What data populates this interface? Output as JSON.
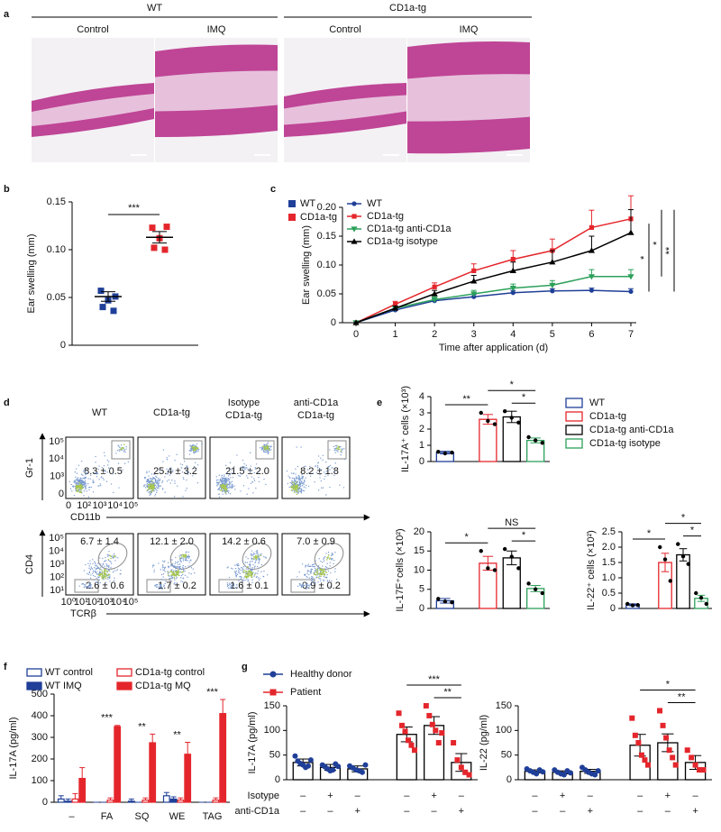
{
  "panel_labels": [
    "a",
    "b",
    "c",
    "d",
    "e",
    "f",
    "g"
  ],
  "histology": {
    "groups": [
      "WT",
      "CD1a-tg"
    ],
    "conditions": [
      "Control",
      "IMQ",
      "Control",
      "IMQ"
    ]
  },
  "flow": {
    "columns": [
      [
        "WT"
      ],
      [
        "CD1a-tg"
      ],
      [
        "Isotype",
        "CD1a-tg"
      ],
      [
        "anti-CD1a",
        "CD1a-tg"
      ]
    ],
    "top": {
      "y_label": "Gr-1",
      "x_label": "CD11b",
      "yticks": [
        "10⁵",
        "10⁴",
        "10³",
        "0"
      ],
      "xticks": [
        "0",
        "10²",
        "10³",
        "10⁴",
        "10⁵"
      ],
      "stats": [
        "8.3 ± 0.5",
        "25.4 ± 3.2",
        "21.5 ± 2.0",
        "8.2 ± 1.8"
      ]
    },
    "bottom": {
      "y_label": "CD4",
      "x_label": "TCRβ",
      "yticks": [
        "10⁵",
        "10⁴",
        "10³",
        "10²",
        "10¹"
      ],
      "xticks": [
        "10⁰",
        "10¹",
        "10²",
        "10³",
        "10⁴",
        "10⁵"
      ],
      "upper_stats": [
        "6.7 ± 1.4",
        "12.1 ± 2.0",
        "14.2 ± 0.6",
        "7.0 ± 0.9"
      ],
      "lower_stats": [
        "2.6 ± 0.6",
        "1.7 ± 0.2",
        "1.6 ± 0.1",
        "0.9 ± 0.2"
      ]
    }
  },
  "chart_data": [
    {
      "type": "dot",
      "y_label": "Ear swelling (mm)",
      "ylim": [
        0,
        0.15
      ],
      "yticks": [
        0,
        0.05,
        {
          "value": 0.1,
          "label": "0.10"
        },
        0.15
      ],
      "series": [
        {
          "name": "WT",
          "color": "#1f3f98",
          "values": [
            0.057,
            0.051,
            0.047,
            0.04,
            0.036
          ],
          "mean": 0.051,
          "error": 0.005
        },
        {
          "name": "CD1a-tg",
          "color": "#e4262c",
          "values": [
            0.123,
            0.124,
            0.112,
            0.102,
            0.1
          ],
          "mean": 0.113,
          "error": 0.006
        }
      ],
      "annotations": [
        {
          "text": "***",
          "from": 0,
          "to": 1
        }
      ]
    },
    {
      "type": "line",
      "x_label": "Time after application (d)",
      "y_label": "Ear swelling (mm)",
      "x": [
        0,
        1,
        2,
        3,
        4,
        5,
        6,
        7
      ],
      "xlim": [
        0,
        7
      ],
      "xticks": [
        0,
        1,
        2,
        3,
        4,
        5,
        6,
        7
      ],
      "ylim": [
        0,
        0.2
      ],
      "yticks": [
        0,
        0.05,
        {
          "value": 0.1,
          "label": "0.10"
        },
        0.15,
        {
          "value": 0.2,
          "label": "0.20"
        }
      ],
      "series": [
        {
          "name": "WT",
          "color": "#1f3f98",
          "marker": "circle",
          "values": [
            0,
            0.022,
            0.038,
            0.045,
            0.052,
            0.055,
            0.056,
            0.054
          ],
          "errors": [
            0,
            0.003,
            0.003,
            0.004,
            0.004,
            0.004,
            0.004,
            0.005
          ]
        },
        {
          "name": "CD1a-tg",
          "color": "#e4262c",
          "marker": "square",
          "values": [
            0,
            0.032,
            0.062,
            0.09,
            0.11,
            0.125,
            0.165,
            0.18
          ],
          "errors": [
            0,
            0.005,
            0.007,
            0.012,
            0.015,
            0.02,
            0.03,
            0.04
          ]
        },
        {
          "name": "CD1a-tg anti-CD1a",
          "color": "#2ca05a",
          "marker": "triangle-down",
          "values": [
            0,
            0.025,
            0.04,
            0.05,
            0.06,
            0.065,
            0.08,
            0.08
          ],
          "errors": [
            0,
            0.004,
            0.005,
            0.006,
            0.007,
            0.008,
            0.012,
            0.012
          ]
        },
        {
          "name": "CD1a-tg isotype",
          "color": "#000000",
          "marker": "triangle",
          "values": [
            0,
            0.025,
            0.05,
            0.072,
            0.09,
            0.105,
            0.125,
            0.156
          ],
          "errors": [
            0,
            0.004,
            0.006,
            0.01,
            0.015,
            0.02,
            0.025,
            0.04
          ]
        }
      ],
      "annotations": [
        {
          "text": "*",
          "from": 0,
          "to": 3
        },
        {
          "text": "*",
          "from": 2,
          "to": 1
        },
        {
          "text": "**",
          "from": 0,
          "to": 1
        }
      ]
    },
    {
      "type": "bar-dot",
      "y_label": "IL-17A⁺ cells (×10³)",
      "ylim": [
        0,
        4
      ],
      "yticks": [
        0,
        1,
        2,
        3,
        4
      ],
      "legend": "right",
      "series": [
        {
          "name": "WT",
          "color": "#1f3f98",
          "values": [
            0.55
          ],
          "errors": [
            0.08
          ],
          "points": [
            [
              0.6,
              0.5,
              0.55
            ]
          ]
        },
        {
          "name": "CD1a-tg",
          "color": "#e4262c",
          "values": [
            2.6
          ],
          "errors": [
            0.3
          ],
          "points": [
            [
              3.0,
              2.5,
              2.3
            ]
          ]
        },
        {
          "name": "CD1a-tg anti-CD1a",
          "color": "#000000",
          "values": [
            2.75
          ],
          "errors": [
            0.35
          ],
          "points": [
            [
              3.1,
              2.7,
              2.4
            ]
          ]
        },
        {
          "name": "CD1a-tg isotype",
          "color": "#2ca05a",
          "values": [
            1.3
          ],
          "errors": [
            0.15
          ],
          "points": [
            [
              1.5,
              1.3,
              1.15
            ]
          ]
        }
      ],
      "annotations": [
        {
          "text": "**",
          "from": 0,
          "to": 1
        },
        {
          "text": "*",
          "from": 2,
          "to": 3
        },
        {
          "text": "*",
          "from": 1,
          "to": 3
        }
      ]
    },
    {
      "type": "bar-dot",
      "y_label": "IL-17F⁺cells (×10²)",
      "ylim": [
        0,
        20
      ],
      "yticks": [
        0,
        5,
        10,
        15,
        20
      ],
      "series": [
        {
          "color": "#1f3f98",
          "values": [
            2
          ],
          "errors": [
            0.6
          ],
          "points": [
            [
              2.5,
              1.8,
              1.6
            ]
          ]
        },
        {
          "color": "#e4262c",
          "values": [
            11.8
          ],
          "errors": [
            1.8
          ],
          "points": [
            [
              15,
              10.5,
              10
            ]
          ]
        },
        {
          "color": "#000000",
          "values": [
            13.2
          ],
          "errors": [
            1.8
          ],
          "points": [
            [
              15.5,
              13.5,
              10.5
            ]
          ]
        },
        {
          "color": "#2ca05a",
          "values": [
            5.2
          ],
          "errors": [
            0.8
          ],
          "points": [
            [
              6.5,
              5,
              4
            ]
          ]
        }
      ],
      "annotations": [
        {
          "text": "*",
          "from": 0,
          "to": 1
        },
        {
          "text": "*",
          "from": 2,
          "to": 3
        },
        {
          "text": "NS",
          "from": 1,
          "to": 3
        }
      ]
    },
    {
      "type": "bar-dot",
      "y_label": "IL-22⁺ cells (×10²)",
      "ylim": [
        0,
        2.5
      ],
      "yticks": [
        0,
        0.5,
        {
          "value": 1,
          "label": "1.0"
        },
        1.5,
        {
          "value": 2,
          "label": "2.0"
        },
        2.5
      ],
      "series": [
        {
          "color": "#1f3f98",
          "values": [
            0.12
          ],
          "errors": [
            0.03
          ],
          "points": [
            [
              0.15,
              0.1,
              0.11
            ]
          ]
        },
        {
          "color": "#e4262c",
          "values": [
            1.5
          ],
          "errors": [
            0.3
          ],
          "points": [
            [
              2.0,
              1.6,
              0.9
            ]
          ]
        },
        {
          "color": "#000000",
          "values": [
            1.75
          ],
          "errors": [
            0.2
          ],
          "points": [
            [
              2.1,
              1.7,
              1.45
            ]
          ]
        },
        {
          "color": "#2ca05a",
          "values": [
            0.33
          ],
          "errors": [
            0.1
          ],
          "points": [
            [
              0.5,
              0.35,
              0.15
            ]
          ]
        }
      ],
      "annotations": [
        {
          "text": "*",
          "from": 0,
          "to": 1
        },
        {
          "text": "*",
          "from": 2,
          "to": 3
        },
        {
          "text": "*",
          "from": 1,
          "to": 3
        }
      ]
    },
    {
      "type": "grouped-bar",
      "y_label": "IL-17A (pg/ml)",
      "categories": [
        "–",
        "FA",
        "SQ",
        "WE",
        "TAG"
      ],
      "ylim": [
        0,
        500
      ],
      "yticks": [
        0,
        100,
        200,
        300,
        400,
        500
      ],
      "series": [
        {
          "name": "WT control",
          "color": "#1f3f98",
          "filled": false,
          "values": [
            15,
            0,
            5,
            30,
            0
          ],
          "errors": [
            15,
            0,
            10,
            15,
            0
          ]
        },
        {
          "name": "WT IMQ",
          "color": "#1f3f98",
          "filled": true,
          "values": [
            5,
            0,
            0,
            15,
            0
          ],
          "errors": [
            10,
            0,
            0,
            10,
            0
          ]
        },
        {
          "name": "CD1a-tg control",
          "color": "#e4262c",
          "filled": false,
          "values": [
            15,
            10,
            10,
            10,
            10
          ],
          "errors": [
            25,
            10,
            10,
            10,
            10
          ]
        },
        {
          "name": "CD1a-tg MQ",
          "color": "#e4262c",
          "filled": true,
          "values": [
            110,
            350,
            275,
            222,
            410
          ],
          "errors": [
            50,
            5,
            40,
            55,
            65
          ],
          "annotations": [
            null,
            "***",
            "**",
            "**",
            "***"
          ]
        }
      ]
    },
    {
      "type": "bar-dot",
      "y_label": "IL-17A (pg/ml)",
      "ylim": [
        0,
        150
      ],
      "yticks": [
        0,
        50,
        100,
        150
      ],
      "legend": "top-left",
      "bar_outline": "#000000",
      "row_labels": [
        "Isotype",
        "anti-CD1a"
      ],
      "row_marks": [
        [
          "–",
          "+",
          "–",
          "–",
          "+",
          "–"
        ],
        [
          "–",
          "–",
          "+",
          "–",
          "–",
          "+"
        ]
      ],
      "series": [
        {
          "name": "Healthy donor",
          "color": "#1f3f98",
          "marker": "circle",
          "values": [
            35,
            25,
            22
          ],
          "errors": [
            7,
            6,
            6
          ],
          "points": [
            [
              48,
              38,
              33,
              30,
              25,
              28,
              40
            ],
            [
              30,
              26,
              22,
              18,
              20,
              32,
              27
            ],
            [
              28,
              24,
              20,
              18,
              15,
              30
            ]
          ]
        },
        {
          "name": "Patient",
          "color": "#e4262c",
          "marker": "square",
          "values": [
            92,
            110,
            35
          ],
          "errors": [
            15,
            18,
            18
          ],
          "points": [
            [
              135,
              110,
              98,
              80,
              70,
              60
            ],
            [
              150,
              130,
              112,
              100,
              75,
              95
            ],
            [
              75,
              40,
              25,
              15,
              10
            ]
          ]
        }
      ],
      "annotations": [
        {
          "text": "**",
          "from": 4,
          "to": 5
        },
        {
          "text": "***",
          "from": 3,
          "to": 5
        }
      ]
    },
    {
      "type": "bar-dot",
      "y_label": "IL-22 (pg/ml)",
      "ylim": [
        0,
        150
      ],
      "yticks": [
        0,
        50,
        100,
        150
      ],
      "bar_outline": "#000000",
      "row_marks": [
        [
          "–",
          "+",
          "–",
          "–",
          "+",
          "–"
        ],
        [
          "–",
          "–",
          "+",
          "–",
          "–",
          "+"
        ]
      ],
      "series": [
        {
          "color": "#1f3f98",
          "marker": "circle",
          "values": [
            17,
            15,
            17
          ],
          "errors": [
            3,
            3,
            4
          ],
          "points": [
            [
              22,
              18,
              15,
              12,
              20,
              16
            ],
            [
              20,
              15,
              12,
              10,
              18,
              14
            ],
            [
              25,
              20,
              15,
              12,
              10,
              18
            ]
          ]
        },
        {
          "color": "#e4262c",
          "marker": "square",
          "values": [
            70,
            75,
            35
          ],
          "errors": [
            22,
            18,
            14
          ],
          "points": [
            [
              125,
              90,
              75,
              50,
              40,
              30
            ],
            [
              140,
              110,
              85,
              60,
              45,
              30
            ],
            [
              60,
              45,
              30,
              20,
              20
            ]
          ]
        }
      ],
      "annotations": [
        {
          "text": "**",
          "from": 4,
          "to": 5
        },
        {
          "text": "*",
          "from": 3,
          "to": 5
        }
      ]
    }
  ]
}
